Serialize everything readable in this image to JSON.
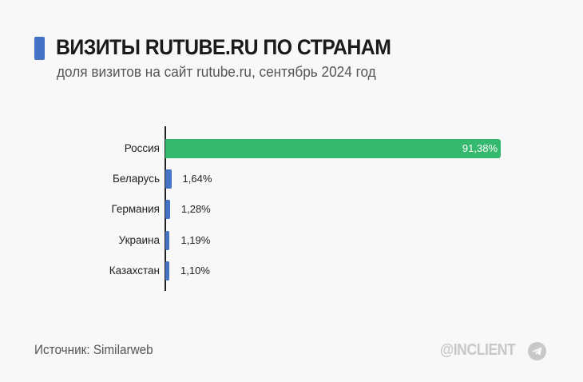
{
  "header": {
    "title": "ВИЗИТЫ RUTUBE.RU ПО СТРАНАМ",
    "subtitle": "доля визитов на сайт rutube.ru, сентябрь 2024 год",
    "accent_color": "#4472c4"
  },
  "footer": {
    "source": "Источник: Similarweb",
    "brand": "@INCLIENT",
    "brand_icon": "telegram-icon"
  },
  "colors": {
    "highlight_bar": "#35b96f",
    "other_bars": "#4472c4",
    "background": "#f8f8f8"
  },
  "chart_data": {
    "type": "bar",
    "orientation": "horizontal",
    "title": "ВИЗИТЫ RUTUBE.RU ПО СТРАНАМ",
    "subtitle": "доля визитов на сайт rutube.ru, сентябрь 2024 год",
    "xlabel": "",
    "ylabel": "",
    "unit": "%",
    "categories": [
      "Россия",
      "Беларусь",
      "Германия",
      "Украина",
      "Казахстан"
    ],
    "values": [
      91.38,
      1.64,
      1.28,
      1.19,
      1.1
    ],
    "value_labels": [
      "91,38%",
      "1,64%",
      "1,28%",
      "1,19%",
      "1,10%"
    ],
    "bar_colors": [
      "#35b96f",
      "#4472c4",
      "#4472c4",
      "#4472c4",
      "#4472c4"
    ],
    "xlim": [
      0,
      91.38
    ],
    "grid": false,
    "legend": null,
    "source": "Источник: Similarweb"
  }
}
